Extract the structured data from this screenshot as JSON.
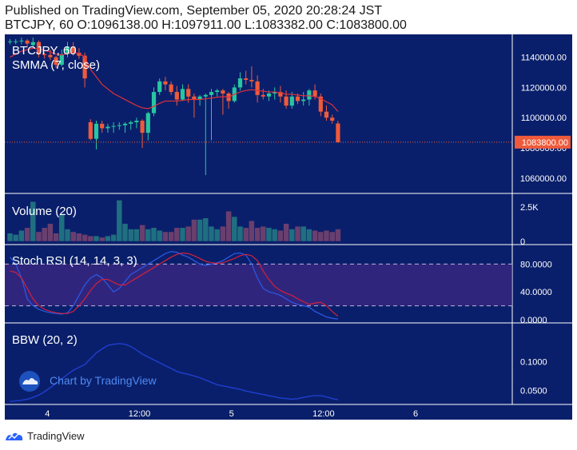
{
  "header": {
    "published_line": "Published on TradingView.com, September 05, 2020 20:28:24 JST",
    "ohlc_line": "BTCJPY, 60 O:1096138.00 H:1097911.00 L:1083382.00 C:1083800.00"
  },
  "colors": {
    "background": "#0a1f6b",
    "up": "#26c6a0",
    "down": "#ef5a3a",
    "smma": "#e0303a",
    "vol_up": "#1f6f80",
    "vol_down": "#6a3f6e",
    "stoch_k": "#2a5ae8",
    "stoch_d": "#d6203a",
    "stoch_band": "#4a2a88",
    "bbw": "#1f3fd0",
    "axis_text": "#ffffff"
  },
  "footer": {
    "brand": "TradingView",
    "logo_icon": "tradingview-logo-icon"
  },
  "watermark": {
    "text": "Chart by TradingView",
    "icon": "tradingview-cloud-icon"
  },
  "chart_data": {
    "type": "candlestick",
    "x_tick_labels": [
      "4",
      "12:00",
      "5",
      "12:00",
      "6"
    ],
    "x_tick_index": [
      6.5,
      22.5,
      38.5,
      54.5,
      70.5
    ],
    "panes": [
      {
        "id": "price",
        "labels": [
          "BTCJPY, 60",
          "SMMA (7, close)"
        ],
        "ylim": [
          1052000,
          1153000
        ],
        "y_ticks": [
          1060000,
          1080000,
          1100000,
          1120000,
          1140000
        ],
        "y_tick_labels": [
          "1060000.00",
          "1080000.00",
          "1100000.00",
          "1120000.00",
          "1140000.00"
        ],
        "last_price": 1083800,
        "last_price_label": "1083800.00",
        "candles": [
          [
            1150000,
            1152000,
            1148500,
            1150500
          ],
          [
            1150500,
            1152000,
            1148500,
            1150500
          ],
          [
            1150500,
            1153000,
            1148500,
            1151000
          ],
          [
            1151000,
            1152000,
            1146500,
            1149000
          ],
          [
            1148000,
            1153000,
            1146500,
            1150000
          ],
          [
            1150000,
            1151000,
            1140000,
            1142000
          ],
          [
            1142000,
            1143000,
            1139000,
            1141500
          ],
          [
            1141500,
            1145000,
            1138000,
            1140000
          ],
          [
            1140000,
            1141000,
            1133000,
            1135000
          ],
          [
            1135000,
            1145000,
            1134000,
            1142000
          ],
          [
            1142000,
            1150000,
            1140000,
            1147000
          ],
          [
            1147000,
            1150000,
            1141000,
            1143000
          ],
          [
            1143000,
            1146000,
            1139000,
            1141000
          ],
          [
            1141000,
            1143000,
            1120000,
            1126000
          ],
          [
            1097000,
            1099000,
            1085000,
            1086000
          ],
          [
            1086000,
            1098000,
            1079000,
            1096000
          ],
          [
            1096000,
            1098000,
            1090000,
            1093000
          ],
          [
            1093000,
            1096000,
            1090000,
            1094000
          ],
          [
            1094000,
            1097000,
            1090000,
            1094500
          ],
          [
            1094500,
            1097000,
            1092000,
            1095000
          ],
          [
            1095000,
            1097000,
            1090000,
            1096000
          ],
          [
            1096000,
            1098000,
            1092000,
            1097000
          ],
          [
            1097000,
            1100000,
            1093000,
            1098000
          ],
          [
            1098000,
            1099000,
            1080000,
            1090000
          ],
          [
            1090000,
            1104000,
            1085000,
            1103000
          ],
          [
            1103000,
            1120000,
            1101000,
            1117000
          ],
          [
            1117000,
            1126000,
            1115000,
            1124000
          ],
          [
            1124000,
            1127000,
            1118000,
            1122000
          ],
          [
            1122000,
            1124000,
            1115000,
            1117000
          ],
          [
            1117000,
            1121000,
            1108000,
            1112000
          ],
          [
            1112000,
            1122000,
            1111000,
            1119000
          ],
          [
            1119000,
            1122000,
            1110000,
            1114000
          ],
          [
            1114000,
            1116000,
            1100000,
            1112000
          ],
          [
            1112000,
            1115000,
            1108000,
            1114000
          ],
          [
            1114000,
            1116000,
            1062000,
            1115000
          ],
          [
            1115000,
            1119000,
            1085000,
            1117000
          ],
          [
            1117000,
            1119000,
            1114000,
            1118000
          ],
          [
            1118000,
            1119000,
            1102000,
            1116000
          ],
          [
            1116000,
            1117000,
            1106000,
            1111000
          ],
          [
            1111000,
            1122000,
            1110000,
            1120000
          ],
          [
            1120000,
            1130000,
            1118000,
            1126000
          ],
          [
            1126000,
            1131000,
            1122000,
            1125000
          ],
          [
            1125000,
            1134000,
            1120000,
            1124000
          ],
          [
            1124000,
            1128000,
            1110000,
            1115000
          ],
          [
            1115000,
            1119000,
            1112000,
            1114000
          ],
          [
            1114000,
            1118000,
            1111000,
            1116000
          ],
          [
            1116000,
            1120000,
            1112000,
            1117000
          ],
          [
            1117000,
            1121000,
            1110000,
            1114000
          ],
          [
            1114000,
            1118000,
            1106000,
            1108000
          ],
          [
            1108000,
            1117000,
            1106000,
            1114000
          ],
          [
            1114000,
            1116000,
            1109000,
            1111000
          ],
          [
            1111000,
            1117000,
            1108000,
            1112000
          ],
          [
            1112000,
            1119000,
            1108000,
            1118000
          ],
          [
            1118000,
            1122000,
            1112000,
            1114000
          ],
          [
            1114000,
            1116000,
            1101000,
            1104000
          ],
          [
            1104000,
            1108000,
            1098000,
            1100000
          ],
          [
            1100000,
            1102000,
            1096000,
            1098000
          ],
          [
            1096138,
            1097911,
            1083382,
            1083800
          ]
        ],
        "smma": [
          1140000,
          1142000,
          1144000,
          1145000,
          1146000,
          1145500,
          1144500,
          1143500,
          1142000,
          1141500,
          1142500,
          1143000,
          1142600,
          1140000,
          1132000,
          1127000,
          1122000,
          1119000,
          1116000,
          1114000,
          1112000,
          1110000,
          1108000,
          1106500,
          1106000,
          1107500,
          1109500,
          1111000,
          1111000,
          1111000,
          1111500,
          1112000,
          1112000,
          1112000,
          1112500,
          1113000,
          1113500,
          1114000,
          1113500,
          1115500,
          1117000,
          1118000,
          1118500,
          1118000,
          1117500,
          1117000,
          1117000,
          1116500,
          1115500,
          1115500,
          1115000,
          1114500,
          1114500,
          1114000,
          1112500,
          1110500,
          1108500,
          1104000
        ]
      },
      {
        "id": "volume",
        "labels": [
          "Volume (20)"
        ],
        "ylim": [
          0,
          3.2
        ],
        "y_ticks": [
          0,
          2.5
        ],
        "y_tick_labels": [
          "0",
          "2.5K"
        ],
        "values": [
          0.6,
          0.5,
          0.8,
          1.0,
          2.9,
          0.7,
          1.0,
          1.3,
          0.6,
          2.0,
          0.9,
          0.7,
          0.6,
          0.5,
          0.4,
          0.4,
          0.3,
          0.4,
          0.5,
          3.0,
          1.3,
          0.9,
          0.9,
          1.2,
          0.9,
          1.0,
          0.8,
          0.7,
          0.7,
          1.0,
          1.0,
          1.1,
          1.6,
          1.6,
          1.7,
          1.1,
          0.9,
          1.1,
          2.2,
          1.8,
          1.1,
          1.0,
          1.5,
          1.0,
          1.1,
          1.0,
          0.9,
          0.8,
          1.3,
          0.9,
          1.1,
          1.1,
          0.9,
          0.8,
          0.7,
          0.8,
          0.7,
          0.9,
          0.8,
          0.8,
          0.8
        ],
        "note_series_order": "index aligned with price candles (extra bars extend beyond)"
      },
      {
        "id": "stoch_rsi",
        "labels": [
          "Stoch RSI (14, 14, 3, 3)"
        ],
        "ylim": [
          0,
          100
        ],
        "y_ticks": [
          0,
          40,
          80
        ],
        "y_tick_labels": [
          "0.0000",
          "40.0000",
          "80.0000"
        ],
        "band": [
          20,
          80
        ],
        "k": [
          90,
          80,
          60,
          30,
          20,
          15,
          12,
          10,
          9,
          8,
          10,
          20,
          35,
          50,
          60,
          65,
          60,
          50,
          40,
          45,
          55,
          65,
          70,
          75,
          80,
          85,
          90,
          95,
          98,
          97,
          93,
          90,
          85,
          80,
          78,
          80,
          82,
          85,
          90,
          95,
          96,
          93,
          80,
          60,
          45,
          40,
          38,
          35,
          30,
          25,
          22,
          20,
          18,
          12,
          8,
          4,
          2,
          1
        ],
        "d": [
          70,
          68,
          60,
          45,
          30,
          20,
          15,
          12,
          10,
          9,
          9,
          12,
          20,
          30,
          42,
          52,
          58,
          58,
          54,
          50,
          50,
          55,
          60,
          65,
          70,
          75,
          80,
          85,
          90,
          94,
          96,
          95,
          92,
          88,
          84,
          82,
          81,
          82,
          85,
          88,
          92,
          94,
          92,
          85,
          70,
          58,
          48,
          42,
          38,
          35,
          30,
          26,
          22,
          24,
          25,
          20,
          12,
          5
        ]
      },
      {
        "id": "bbw",
        "labels": [
          "BBW (20, 2)"
        ],
        "ylim": [
          0.03,
          0.16
        ],
        "y_ticks": [
          0.05,
          0.1
        ],
        "y_tick_labels": [
          "0.0500",
          "0.1000"
        ],
        "values": [
          0.031,
          0.032,
          0.033,
          0.035,
          0.038,
          0.042,
          0.048,
          0.055,
          0.062,
          0.07,
          0.078,
          0.085,
          0.09,
          0.095,
          0.105,
          0.115,
          0.122,
          0.128,
          0.13,
          0.131,
          0.13,
          0.126,
          0.12,
          0.113,
          0.108,
          0.103,
          0.098,
          0.093,
          0.088,
          0.083,
          0.08,
          0.078,
          0.075,
          0.072,
          0.068,
          0.064,
          0.06,
          0.058,
          0.056,
          0.054,
          0.052,
          0.049,
          0.047,
          0.045,
          0.043,
          0.041,
          0.039,
          0.037,
          0.036,
          0.035,
          0.036,
          0.038,
          0.04,
          0.041,
          0.041,
          0.039,
          0.036,
          0.034
        ]
      }
    ]
  }
}
